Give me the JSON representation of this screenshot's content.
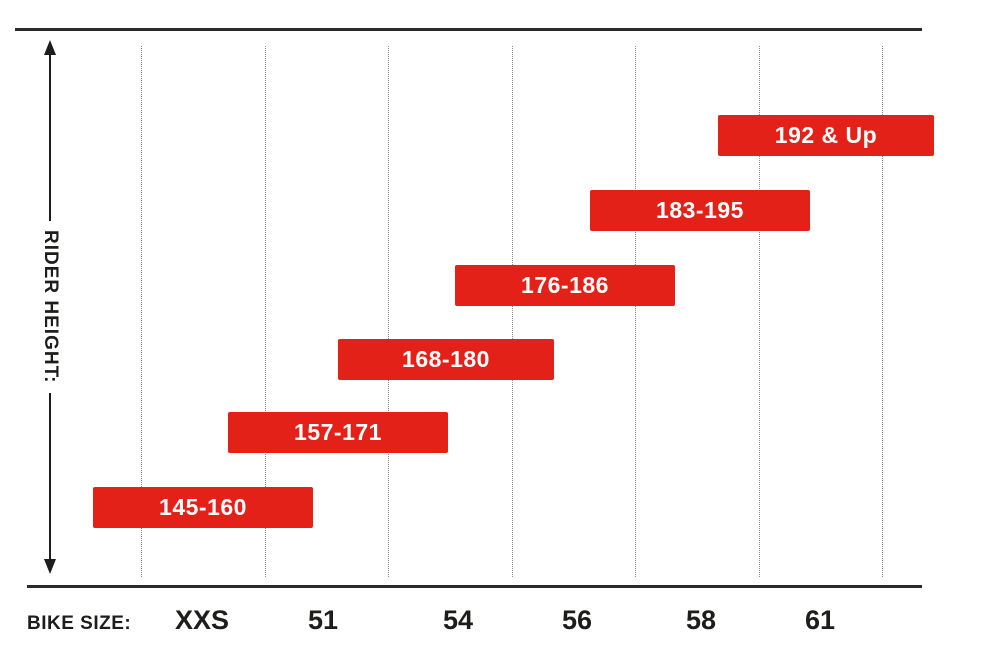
{
  "chart_data": {
    "type": "bar",
    "subtype": "horizontal-range-gantt",
    "xlabel": "BIKE SIZE:",
    "ylabel": "RIDER HEIGHT:",
    "categories": [
      "XXS",
      "51",
      "54",
      "56",
      "58",
      "61"
    ],
    "bars": [
      {
        "size": "XXS",
        "label": "145-160",
        "range_min": 145,
        "range_max": 160
      },
      {
        "size": "51",
        "label": "157-171",
        "range_min": 157,
        "range_max": 171
      },
      {
        "size": "54",
        "label": "168-180",
        "range_min": 168,
        "range_max": 180
      },
      {
        "size": "56",
        "label": "176-186",
        "range_min": 176,
        "range_max": 186
      },
      {
        "size": "58",
        "label": "183-195",
        "range_min": 183,
        "range_max": 195
      },
      {
        "size": "61",
        "label": "192 & Up",
        "range_min": 192,
        "range_max": null
      }
    ],
    "grid": {
      "style": "dotted-vertical",
      "line_count": 7
    },
    "legend": "none",
    "colors": {
      "bar": "#e32119",
      "bar_text": "#ffffff",
      "axis": "#1d1d1b",
      "rule": "#2b2b2b",
      "grid": "#8a8a8a",
      "background": "#ffffff"
    }
  }
}
